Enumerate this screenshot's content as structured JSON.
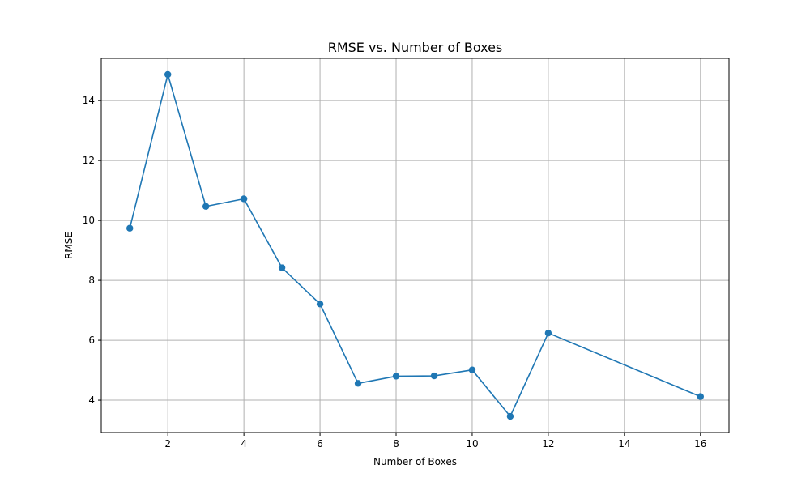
{
  "chart_data": {
    "type": "line",
    "title": "RMSE vs. Number of Boxes",
    "xlabel": "Number of Boxes",
    "ylabel": "RMSE",
    "xlim": [
      0.25,
      16.75
    ],
    "ylim": [
      2.92,
      15.41
    ],
    "x_ticks": [
      2,
      4,
      6,
      8,
      10,
      12,
      14,
      16
    ],
    "y_ticks": [
      4,
      6,
      8,
      10,
      12,
      14
    ],
    "grid": true,
    "legend": "none",
    "series": [
      {
        "color": "#1f77b4",
        "marker": "circle",
        "x": [
          1,
          2,
          3,
          4,
          5,
          6,
          7,
          8,
          9,
          10,
          11,
          12,
          16
        ],
        "y": [
          9.74,
          14.87,
          10.47,
          10.72,
          8.42,
          7.21,
          4.56,
          4.8,
          4.81,
          5.01,
          3.46,
          6.24,
          4.12
        ]
      }
    ]
  }
}
